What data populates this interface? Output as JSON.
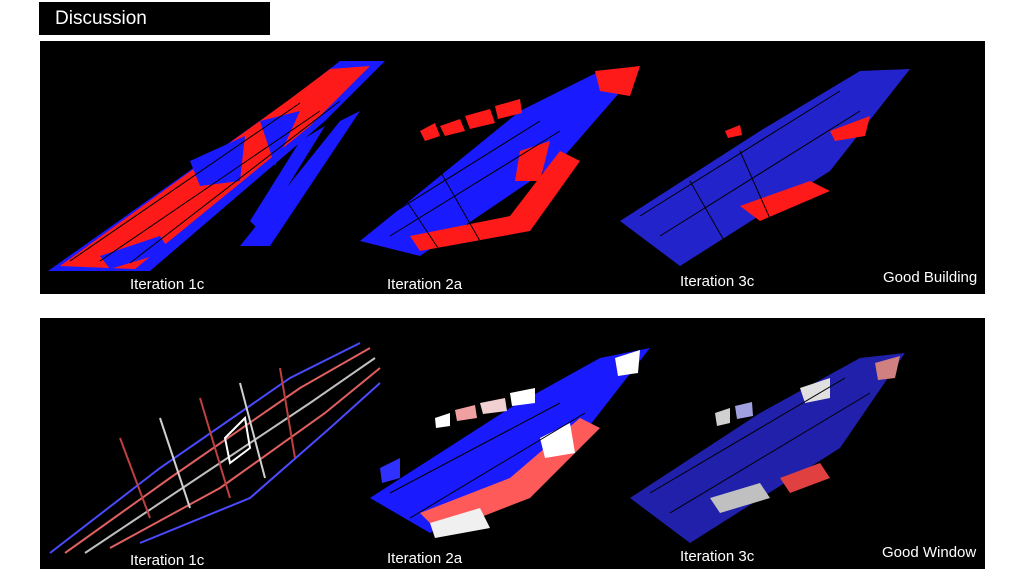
{
  "header": {
    "title": "Discussion"
  },
  "panels": {
    "building": {
      "labels": [
        "Iteration 1c",
        "Iteration 2a",
        "Iteration 3c"
      ],
      "corner_label": "Good Building"
    },
    "window": {
      "labels": [
        "Iteration 1c",
        "Iteration 2a",
        "Iteration 3c"
      ],
      "corner_label": "Good Window"
    }
  },
  "colors": {
    "background": "#000000",
    "red": "#ff1a1a",
    "blue": "#1a1aff",
    "white": "#f2f2f2",
    "pink": "#e88888"
  }
}
